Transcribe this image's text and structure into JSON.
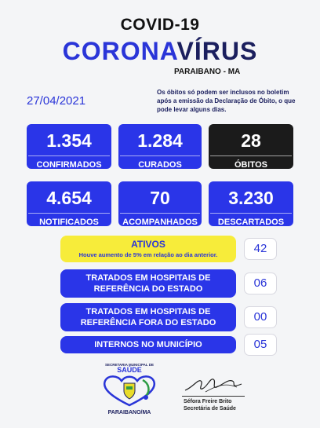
{
  "header": {
    "title1": "COVID-19",
    "title2_part1": "CORONA",
    "title2_part2": "VÍRUS",
    "location": "PARAIBANO - MA"
  },
  "date": "27/04/2021",
  "note": "Os óbitos só podem ser inclusos no boletim após a emissão da Declaração de Óbito, o que pode levar alguns dias.",
  "cards": [
    {
      "value": "1.354",
      "label": "CONFIRMADOS"
    },
    {
      "value": "1.284",
      "label": "CURADOS"
    },
    {
      "value": "28",
      "label": "ÓBITOS"
    },
    {
      "value": "4.654",
      "label": "NOTIFICADOS"
    },
    {
      "value": "70",
      "label": "ACOMPANHADOS"
    },
    {
      "value": "3.230",
      "label": "DESCARTADOS"
    }
  ],
  "bars": {
    "ativos": {
      "title": "ATIVOS",
      "subtitle": "Houve aumento de 5% em relação ao dia anterior.",
      "value": "42"
    },
    "hosp_estado": {
      "line1": "TRATADOS EM HOSPITAIS DE",
      "line2": "REFERÊNCIA DO ESTADO",
      "value": "06"
    },
    "hosp_fora": {
      "line1": "TRATADOS EM HOSPITAIS DE",
      "line2": "REFERÊNCIA FORA DO ESTADO",
      "value": "00"
    },
    "internos": {
      "label": "INTERNOS NO MUNICÍPIO",
      "value": "05"
    }
  },
  "footer": {
    "logo_top": "SECRETARIA MUNICIPAL DE",
    "logo_main": "SAÚDE",
    "logo_bottom": "PARAIBANO/MA",
    "signer_name": "Séfora Freire Brito",
    "signer_role": "Secretária de Saúde"
  },
  "colors": {
    "blue": "#2a35e8",
    "dark": "#1b1b1b",
    "yellow": "#f7ec3a",
    "navy": "#1b1f5e"
  }
}
